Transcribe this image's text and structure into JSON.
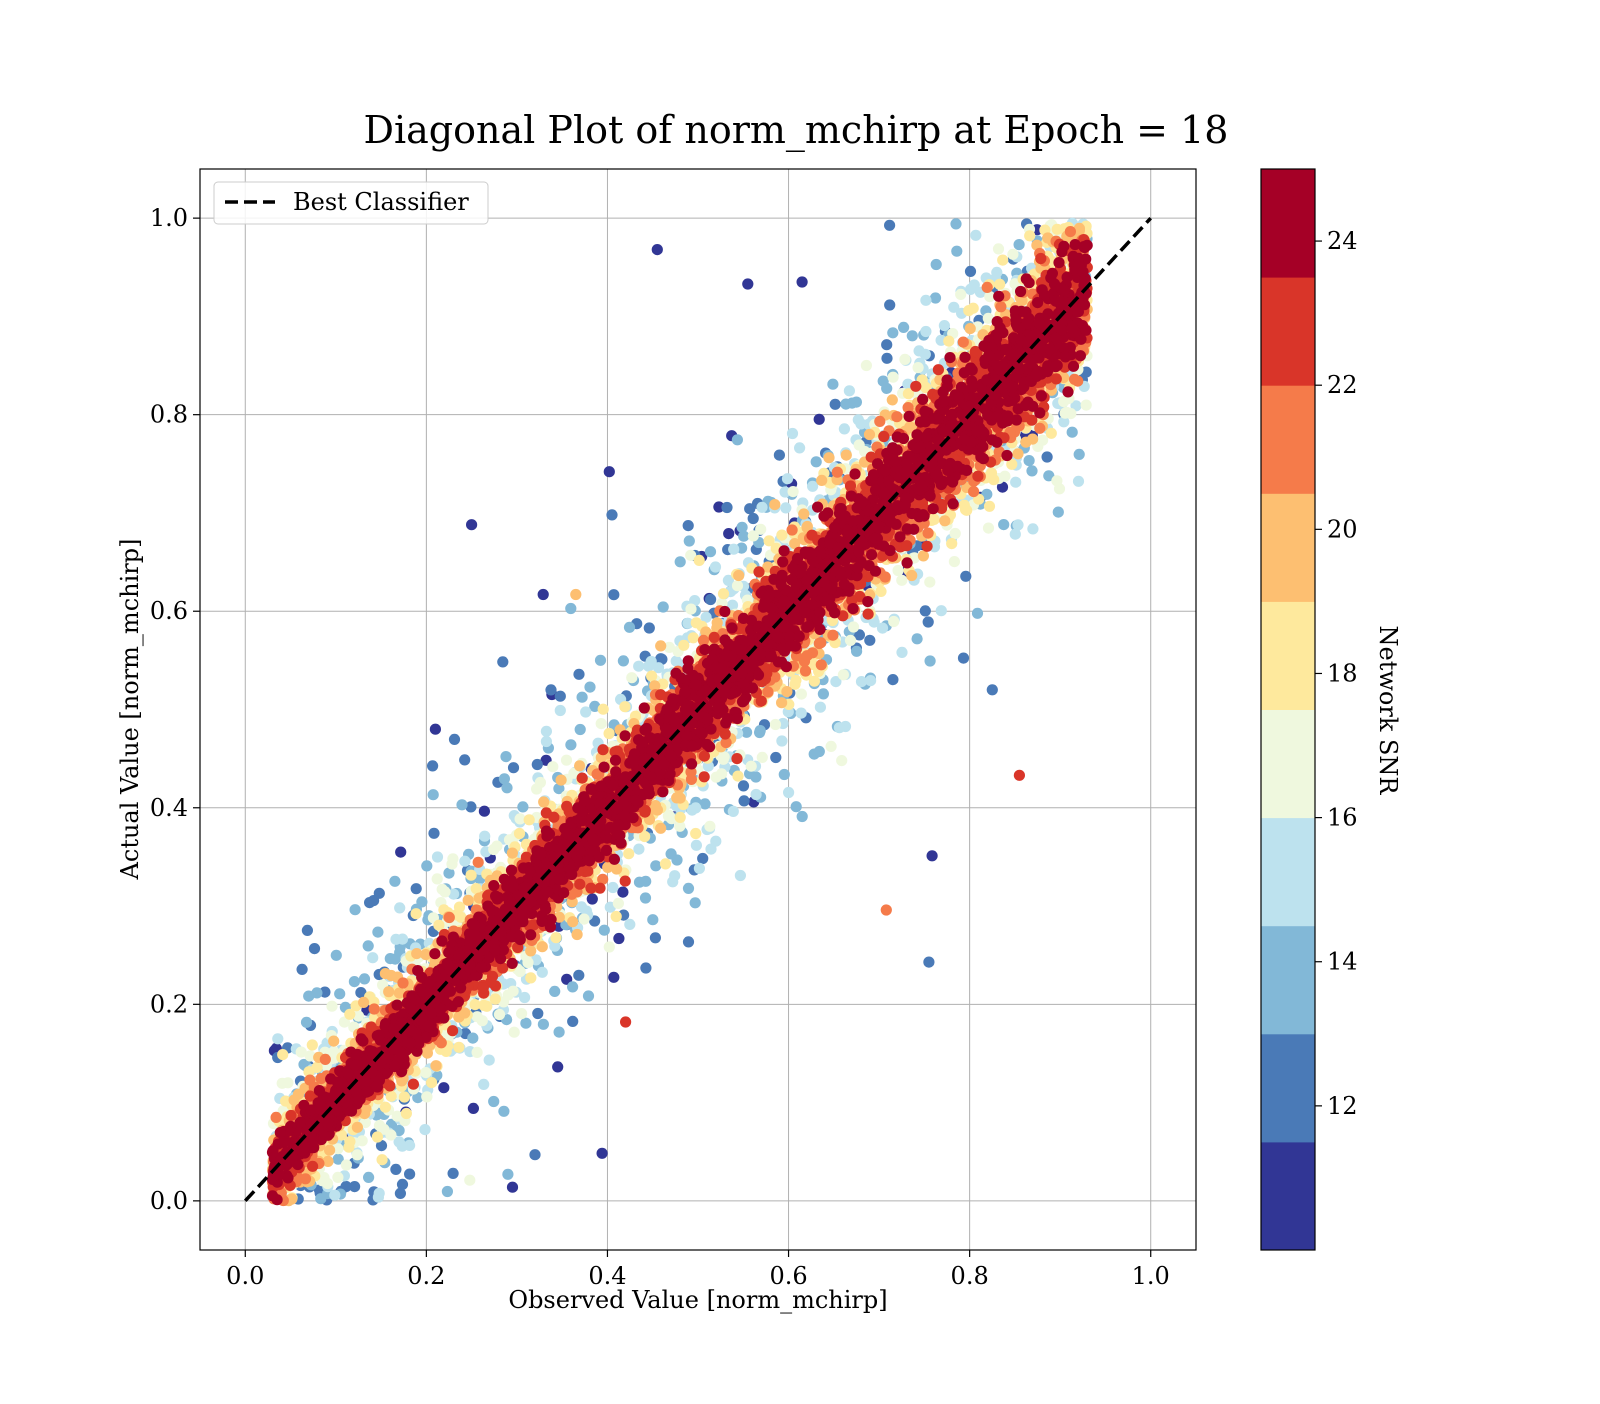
{
  "chart_data": {
    "type": "scatter",
    "title": "Diagonal Plot of norm_mchirp at Epoch = 18",
    "xlabel": "Observed Value [norm_mchirp]",
    "ylabel": "Actual Value [norm_mchirp]",
    "xlim": [
      -0.05,
      1.05
    ],
    "ylim": [
      -0.05,
      1.05
    ],
    "xticks": [
      0.0,
      0.2,
      0.4,
      0.6,
      0.8,
      1.0
    ],
    "xtick_labels": [
      "0.0",
      "0.2",
      "0.4",
      "0.6",
      "0.8",
      "1.0"
    ],
    "yticks": [
      0.0,
      0.2,
      0.4,
      0.6,
      0.8,
      1.0
    ],
    "ytick_labels": [
      "0.0",
      "0.2",
      "0.4",
      "0.6",
      "0.8",
      "1.0"
    ],
    "grid": true,
    "legend": {
      "position": "upper-left",
      "entries": [
        {
          "label": "Best Classifier",
          "style": "dashed",
          "color": "#000000"
        }
      ]
    },
    "reference_line": {
      "name": "Best Classifier",
      "x": [
        0.0,
        1.0
      ],
      "y": [
        0.0,
        1.0
      ],
      "style": "dashed",
      "color": "#000000"
    },
    "colorbar": {
      "label": "Network SNR",
      "colormap": "RdYlBu_r",
      "range": [
        10.0,
        25.0
      ],
      "ticks": [
        12,
        14,
        16,
        18,
        20,
        22,
        24
      ],
      "tick_labels": [
        "12",
        "14",
        "16",
        "18",
        "20",
        "22",
        "24"
      ],
      "bins": [
        {
          "range": [
            10.0,
            11.5
          ],
          "color": "#313695"
        },
        {
          "range": [
            11.5,
            13.0
          ],
          "color": "#4a7ab7"
        },
        {
          "range": [
            13.0,
            14.5
          ],
          "color": "#82b8d7"
        },
        {
          "range": [
            14.5,
            16.0
          ],
          "color": "#bde2ee"
        },
        {
          "range": [
            16.0,
            17.5
          ],
          "color": "#eff8de"
        },
        {
          "range": [
            17.5,
            19.0
          ],
          "color": "#fee99d"
        },
        {
          "range": [
            19.0,
            20.5
          ],
          "color": "#fdbf71"
        },
        {
          "range": [
            20.5,
            22.0
          ],
          "color": "#f57b4a"
        },
        {
          "range": [
            22.0,
            23.5
          ],
          "color": "#d93529"
        },
        {
          "range": [
            23.5,
            25.0
          ],
          "color": "#a50026"
        }
      ]
    },
    "scatter": {
      "point_count": 12000,
      "x_range": [
        0.02,
        0.94
      ],
      "y_range": [
        0.0,
        0.99
      ],
      "relation": "actual ≈ observed; spread decreases as Network SNR increases",
      "outliers": [
        {
          "x": 0.455,
          "y": 0.968,
          "snr": 10.5
        },
        {
          "x": 0.555,
          "y": 0.933,
          "snr": 10.5
        },
        {
          "x": 0.615,
          "y": 0.935,
          "snr": 10.5
        },
        {
          "x": 0.25,
          "y": 0.688,
          "snr": 10.5
        },
        {
          "x": 0.402,
          "y": 0.742,
          "snr": 10.5
        },
        {
          "x": 0.405,
          "y": 0.698,
          "snr": 12.0
        },
        {
          "x": 0.329,
          "y": 0.617,
          "snr": 10.5
        },
        {
          "x": 0.21,
          "y": 0.48,
          "snr": 10.5
        },
        {
          "x": 0.755,
          "y": 0.243,
          "snr": 12.0
        },
        {
          "x": 0.855,
          "y": 0.433,
          "snr": 22.5
        },
        {
          "x": 0.708,
          "y": 0.296,
          "snr": 21.5
        },
        {
          "x": 0.42,
          "y": 0.182,
          "snr": 22.5
        },
        {
          "x": 0.32,
          "y": 0.047,
          "snr": 12.5
        },
        {
          "x": 0.248,
          "y": 0.021,
          "snr": 17.0
        },
        {
          "x": 0.29,
          "y": 0.027,
          "snr": 14.0
        },
        {
          "x": 0.825,
          "y": 0.52,
          "snr": 12.0
        },
        {
          "x": 0.148,
          "y": 0.313,
          "snr": 12.0
        },
        {
          "x": 0.365,
          "y": 0.617,
          "snr": 19.0
        }
      ]
    }
  }
}
